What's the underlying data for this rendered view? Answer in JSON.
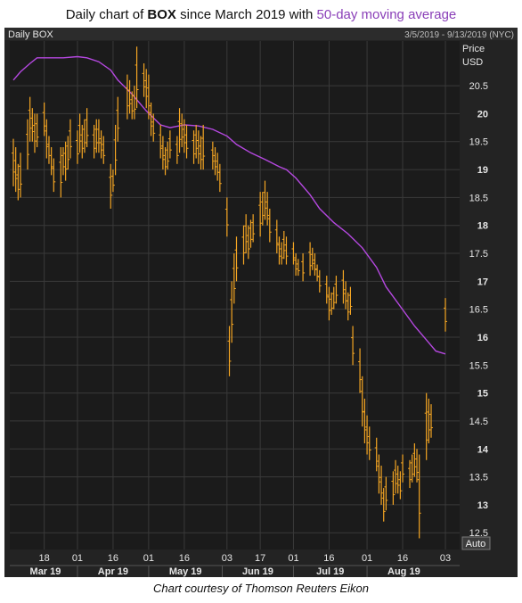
{
  "header": {
    "prefix": "Daily chart of ",
    "ticker": "BOX",
    "middle": " since March 2019 with ",
    "ma_label": "50-day moving average"
  },
  "footer": "Chart courtesy of Thomson Reuters Eikon",
  "panel": {
    "name": "Daily BOX",
    "range": "3/5/2019 - 9/13/2019 (NYC)",
    "price_label": "Price",
    "currency": "USD",
    "auto_button": "Auto"
  },
  "colors": {
    "background": "#232323",
    "panel_bg": "#1b1b1b",
    "bars": "#f5a623",
    "ma": "#b548e0",
    "grid": "#3a3a3a",
    "text": "#e6e6e6"
  },
  "chart_data": {
    "type": "line",
    "title": "Daily chart of BOX since March 2019 with 50-day moving average",
    "ylim": [
      12.2,
      21.3
    ],
    "y_ticks": [
      12.5,
      13,
      13.5,
      14,
      14.5,
      15,
      15.5,
      16,
      16.5,
      17,
      17.5,
      18,
      18.5,
      19,
      19.5,
      20,
      20.5
    ],
    "y_tick_labels": [
      "12.5",
      "13",
      "13.5",
      "14",
      "14.5",
      "15",
      "15.5",
      "16",
      "16.5",
      "17",
      "17.5",
      "18",
      "18.5",
      "19",
      "19.5",
      "20",
      "20.5"
    ],
    "x_day_ticks": [
      {
        "label": "18",
        "date": "2019-03-18"
      },
      {
        "label": "01",
        "date": "2019-04-01"
      },
      {
        "label": "16",
        "date": "2019-04-16"
      },
      {
        "label": "01",
        "date": "2019-05-01"
      },
      {
        "label": "16",
        "date": "2019-05-16"
      },
      {
        "label": "03",
        "date": "2019-06-03"
      },
      {
        "label": "17",
        "date": "2019-06-17"
      },
      {
        "label": "01",
        "date": "2019-07-01"
      },
      {
        "label": "16",
        "date": "2019-07-16"
      },
      {
        "label": "01",
        "date": "2019-08-01"
      },
      {
        "label": "16",
        "date": "2019-08-16"
      },
      {
        "label": "03",
        "date": "2019-09-03"
      }
    ],
    "x_month_ticks": [
      {
        "label": "Mar 19",
        "start": "2019-03-05",
        "end": "2019-04-01"
      },
      {
        "label": "Apr 19",
        "start": "2019-04-01",
        "end": "2019-05-01"
      },
      {
        "label": "May 19",
        "start": "2019-05-01",
        "end": "2019-06-01"
      },
      {
        "label": "Jun 19",
        "start": "2019-06-01",
        "end": "2019-07-01"
      },
      {
        "label": "Jul 19",
        "start": "2019-07-01",
        "end": "2019-08-01"
      },
      {
        "label": "Aug 19",
        "start": "2019-08-01",
        "end": "2019-09-01"
      }
    ],
    "series": [
      {
        "name": "50-day moving average",
        "type": "line",
        "points": [
          [
            "2019-03-05",
            20.6
          ],
          [
            "2019-03-08",
            20.75
          ],
          [
            "2019-03-12",
            20.9
          ],
          [
            "2019-03-15",
            21.0
          ],
          [
            "2019-03-20",
            21.0
          ],
          [
            "2019-03-26",
            21.0
          ],
          [
            "2019-04-01",
            21.02
          ],
          [
            "2019-04-05",
            21.0
          ],
          [
            "2019-04-10",
            20.93
          ],
          [
            "2019-04-15",
            20.78
          ],
          [
            "2019-04-18",
            20.6
          ],
          [
            "2019-04-24",
            20.35
          ],
          [
            "2019-04-30",
            20.05
          ],
          [
            "2019-05-06",
            19.8
          ],
          [
            "2019-05-10",
            19.75
          ],
          [
            "2019-05-16",
            19.8
          ],
          [
            "2019-05-22",
            19.78
          ],
          [
            "2019-05-28",
            19.72
          ],
          [
            "2019-06-03",
            19.6
          ],
          [
            "2019-06-07",
            19.45
          ],
          [
            "2019-06-13",
            19.3
          ],
          [
            "2019-06-19",
            19.18
          ],
          [
            "2019-06-25",
            19.05
          ],
          [
            "2019-06-28",
            19.0
          ],
          [
            "2019-07-02",
            18.85
          ],
          [
            "2019-07-08",
            18.55
          ],
          [
            "2019-07-12",
            18.3
          ],
          [
            "2019-07-18",
            18.05
          ],
          [
            "2019-07-24",
            17.85
          ],
          [
            "2019-07-30",
            17.6
          ],
          [
            "2019-08-05",
            17.25
          ],
          [
            "2019-08-09",
            16.9
          ],
          [
            "2019-08-15",
            16.55
          ],
          [
            "2019-08-21",
            16.2
          ],
          [
            "2019-08-26",
            15.95
          ],
          [
            "2019-08-30",
            15.75
          ],
          [
            "2019-09-03",
            15.7
          ]
        ]
      },
      {
        "name": "BOX",
        "type": "ohlc",
        "bars": [
          [
            "2019-03-05",
            19.55,
            18.7
          ],
          [
            "2019-03-06",
            19.4,
            18.6
          ],
          [
            "2019-03-07",
            19.1,
            18.45
          ],
          [
            "2019-03-08",
            19.3,
            18.5
          ],
          [
            "2019-03-11",
            19.9,
            19.0
          ],
          [
            "2019-03-12",
            20.3,
            19.5
          ],
          [
            "2019-03-13",
            20.1,
            19.5
          ],
          [
            "2019-03-14",
            20.0,
            19.3
          ],
          [
            "2019-03-15",
            20.0,
            19.4
          ],
          [
            "2019-03-18",
            20.2,
            19.6
          ],
          [
            "2019-03-19",
            19.9,
            19.2
          ],
          [
            "2019-03-20",
            19.6,
            19.1
          ],
          [
            "2019-03-21",
            19.4,
            18.9
          ],
          [
            "2019-03-22",
            19.2,
            18.6
          ],
          [
            "2019-03-25",
            19.4,
            18.5
          ],
          [
            "2019-03-26",
            19.4,
            18.9
          ],
          [
            "2019-03-27",
            19.5,
            18.8
          ],
          [
            "2019-03-28",
            19.6,
            19.0
          ],
          [
            "2019-03-29",
            19.9,
            19.2
          ],
          [
            "2019-04-01",
            19.7,
            19.1
          ],
          [
            "2019-04-02",
            20.0,
            19.3
          ],
          [
            "2019-04-03",
            19.8,
            19.2
          ],
          [
            "2019-04-04",
            19.9,
            19.3
          ],
          [
            "2019-04-05",
            20.1,
            19.4
          ],
          [
            "2019-04-08",
            19.8,
            19.2
          ],
          [
            "2019-04-09",
            19.9,
            19.3
          ],
          [
            "2019-04-10",
            19.9,
            19.3
          ],
          [
            "2019-04-11",
            19.7,
            19.2
          ],
          [
            "2019-04-12",
            19.6,
            19.1
          ],
          [
            "2019-04-15",
            19.1,
            18.3
          ],
          [
            "2019-04-16",
            19.0,
            18.6
          ],
          [
            "2019-04-17",
            19.8,
            18.9
          ],
          [
            "2019-04-18",
            20.3,
            19.5
          ],
          [
            "2019-04-22",
            20.7,
            19.9
          ],
          [
            "2019-04-23",
            20.6,
            20.0
          ],
          [
            "2019-04-24",
            20.4,
            19.9
          ],
          [
            "2019-04-25",
            20.5,
            19.9
          ],
          [
            "2019-04-26",
            21.2,
            20.1
          ],
          [
            "2019-04-29",
            20.9,
            20.3
          ],
          [
            "2019-04-30",
            20.8,
            20.1
          ],
          [
            "2019-05-01",
            20.7,
            19.9
          ],
          [
            "2019-05-02",
            20.2,
            19.6
          ],
          [
            "2019-05-03",
            20.0,
            19.5
          ],
          [
            "2019-05-06",
            19.8,
            19.2
          ],
          [
            "2019-05-07",
            19.6,
            19.0
          ],
          [
            "2019-05-08",
            19.4,
            18.9
          ],
          [
            "2019-05-09",
            19.5,
            19.0
          ],
          [
            "2019-05-10",
            19.7,
            19.2
          ],
          [
            "2019-05-13",
            19.6,
            19.1
          ],
          [
            "2019-05-14",
            20.1,
            19.3
          ],
          [
            "2019-05-15",
            20.0,
            19.4
          ],
          [
            "2019-05-16",
            19.9,
            19.3
          ],
          [
            "2019-05-17",
            19.8,
            19.2
          ],
          [
            "2019-05-20",
            19.7,
            19.1
          ],
          [
            "2019-05-21",
            19.8,
            19.2
          ],
          [
            "2019-05-22",
            19.7,
            19.1
          ],
          [
            "2019-05-23",
            19.6,
            19.0
          ],
          [
            "2019-05-24",
            19.8,
            19.0
          ],
          [
            "2019-05-28",
            19.5,
            19.0
          ],
          [
            "2019-05-29",
            19.4,
            18.9
          ],
          [
            "2019-05-30",
            19.3,
            18.8
          ],
          [
            "2019-05-31",
            19.1,
            18.6
          ],
          [
            "2019-06-03",
            18.5,
            17.8
          ],
          [
            "2019-06-04",
            16.2,
            15.3
          ],
          [
            "2019-06-05",
            17.0,
            15.9
          ],
          [
            "2019-06-06",
            17.5,
            16.6
          ],
          [
            "2019-06-07",
            17.8,
            17.0
          ],
          [
            "2019-06-10",
            18.0,
            17.3
          ],
          [
            "2019-06-11",
            18.2,
            17.5
          ],
          [
            "2019-06-12",
            18.0,
            17.4
          ],
          [
            "2019-06-13",
            18.1,
            17.6
          ],
          [
            "2019-06-14",
            18.2,
            17.7
          ],
          [
            "2019-06-17",
            18.6,
            17.8
          ],
          [
            "2019-06-18",
            18.6,
            18.0
          ],
          [
            "2019-06-19",
            18.8,
            18.1
          ],
          [
            "2019-06-20",
            18.6,
            18.0
          ],
          [
            "2019-06-21",
            18.3,
            17.7
          ],
          [
            "2019-06-24",
            18.1,
            17.5
          ],
          [
            "2019-06-25",
            17.8,
            17.3
          ],
          [
            "2019-06-26",
            17.7,
            17.3
          ],
          [
            "2019-06-27",
            17.9,
            17.4
          ],
          [
            "2019-06-28",
            17.8,
            17.3
          ],
          [
            "2019-07-01",
            17.7,
            17.3
          ],
          [
            "2019-07-02",
            17.5,
            17.1
          ],
          [
            "2019-07-03",
            17.4,
            17.1
          ],
          [
            "2019-07-05",
            17.5,
            17.0
          ],
          [
            "2019-07-08",
            17.7,
            17.1
          ],
          [
            "2019-07-09",
            17.6,
            17.2
          ],
          [
            "2019-07-10",
            17.5,
            17.1
          ],
          [
            "2019-07-11",
            17.3,
            17.0
          ],
          [
            "2019-07-12",
            17.2,
            16.8
          ],
          [
            "2019-07-15",
            17.1,
            16.6
          ],
          [
            "2019-07-16",
            16.9,
            16.3
          ],
          [
            "2019-07-17",
            16.8,
            16.4
          ],
          [
            "2019-07-18",
            16.9,
            16.5
          ],
          [
            "2019-07-19",
            17.1,
            16.6
          ],
          [
            "2019-07-22",
            17.2,
            16.6
          ],
          [
            "2019-07-23",
            17.0,
            16.5
          ],
          [
            "2019-07-24",
            16.8,
            16.3
          ],
          [
            "2019-07-25",
            16.9,
            16.4
          ],
          [
            "2019-07-26",
            16.2,
            15.5
          ],
          [
            "2019-07-29",
            15.8,
            15.0
          ],
          [
            "2019-07-30",
            15.3,
            14.4
          ],
          [
            "2019-07-31",
            14.9,
            14.1
          ],
          [
            "2019-08-01",
            14.6,
            13.9
          ],
          [
            "2019-08-02",
            14.4,
            13.8
          ],
          [
            "2019-08-05",
            14.2,
            13.6
          ],
          [
            "2019-08-06",
            13.9,
            13.2
          ],
          [
            "2019-08-07",
            13.7,
            13.0
          ],
          [
            "2019-08-08",
            13.3,
            12.7
          ],
          [
            "2019-08-09",
            13.5,
            12.9
          ],
          [
            "2019-08-12",
            13.6,
            13.0
          ],
          [
            "2019-08-13",
            13.8,
            13.2
          ],
          [
            "2019-08-14",
            13.7,
            13.2
          ],
          [
            "2019-08-15",
            13.6,
            13.1
          ],
          [
            "2019-08-16",
            13.9,
            13.4
          ],
          [
            "2019-08-19",
            13.8,
            13.3
          ],
          [
            "2019-08-20",
            13.9,
            13.4
          ],
          [
            "2019-08-21",
            14.1,
            13.5
          ],
          [
            "2019-08-22",
            14.0,
            13.4
          ],
          [
            "2019-08-23",
            13.9,
            12.4
          ],
          [
            "2019-08-26",
            15.0,
            13.8
          ],
          [
            "2019-08-27",
            14.9,
            14.1
          ],
          [
            "2019-08-28",
            14.8,
            14.2
          ],
          [
            "2019-09-03",
            16.7,
            16.1
          ]
        ]
      }
    ]
  }
}
